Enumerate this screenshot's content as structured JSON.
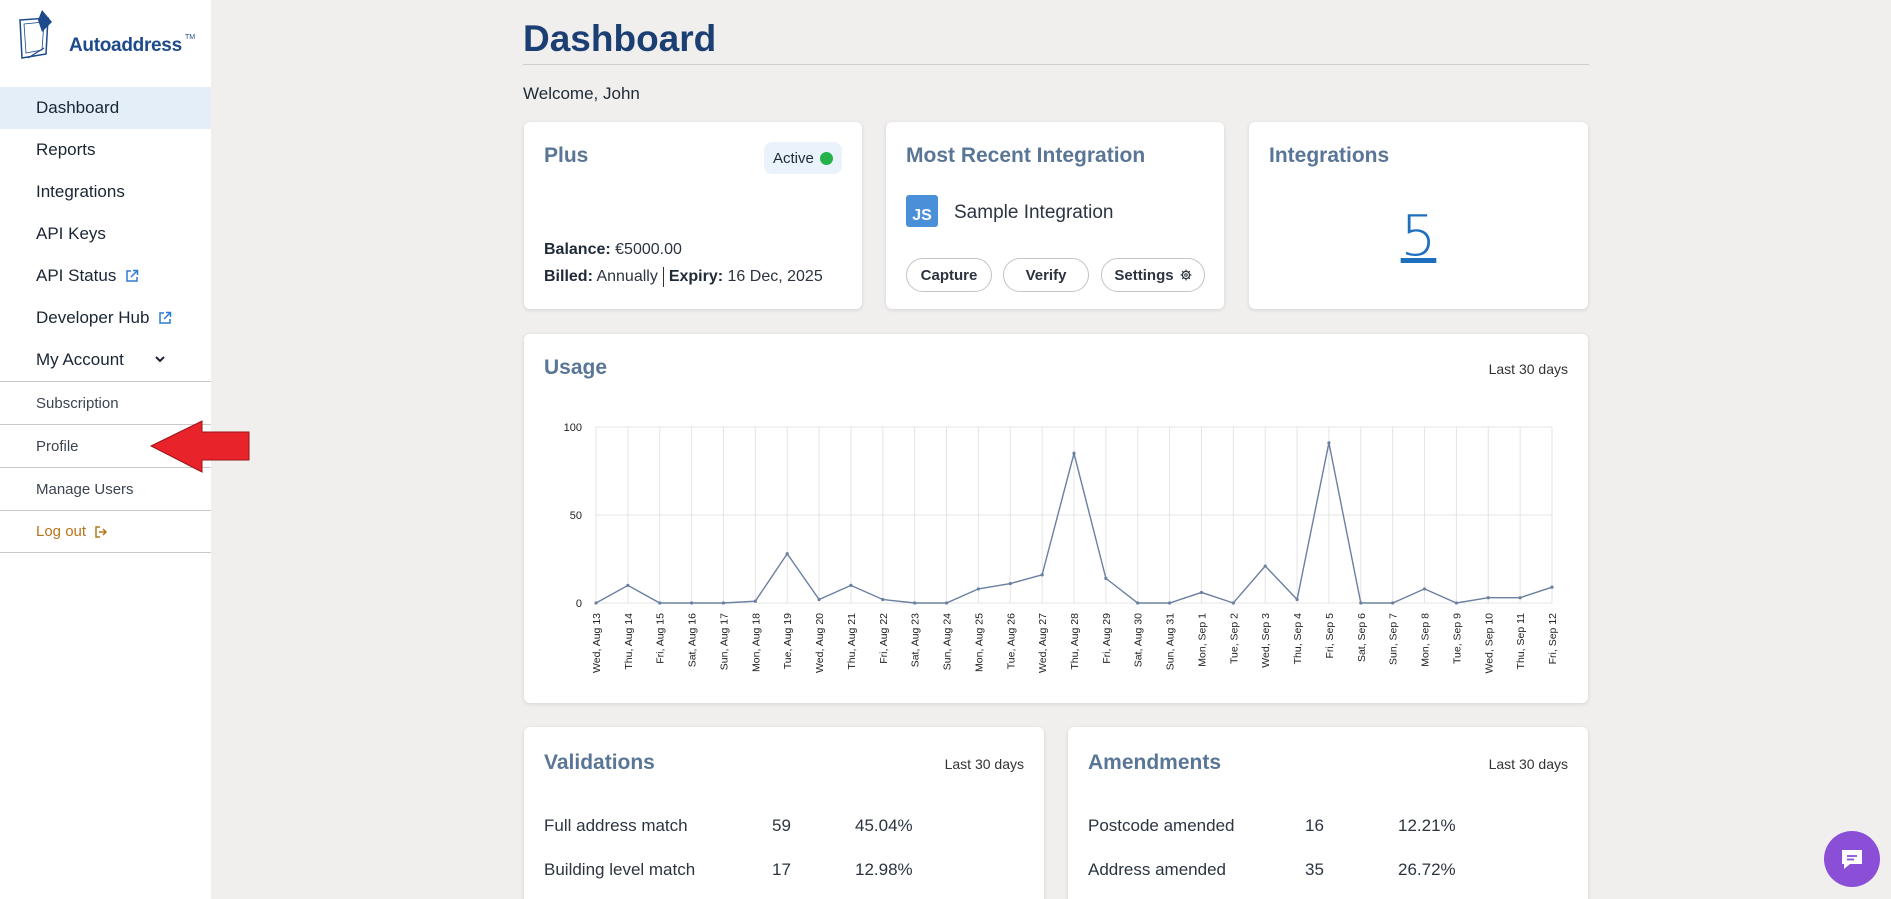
{
  "brand": {
    "name": "Autoaddress",
    "tm": "TM"
  },
  "nav": {
    "items": [
      {
        "label": "Dashboard",
        "active": true
      },
      {
        "label": "Reports"
      },
      {
        "label": "Integrations"
      },
      {
        "label": "API Keys"
      },
      {
        "label": "API Status",
        "external": true
      },
      {
        "label": "Developer Hub",
        "external": true
      },
      {
        "label": "My Account",
        "expanded": true
      }
    ],
    "sub_items": [
      {
        "label": "Subscription"
      },
      {
        "label": "Profile"
      },
      {
        "label": "Manage Users"
      }
    ],
    "logout": "Log out"
  },
  "page": {
    "title": "Dashboard",
    "welcome": "Welcome, John"
  },
  "plan_card": {
    "title": "Plus",
    "status": "Active",
    "status_color": "#24b24a",
    "balance_label": "Balance:",
    "balance_value": "€5000.00",
    "billed_label": "Billed:",
    "billed_value": "Annually",
    "expiry_label": "Expiry:",
    "expiry_value": "16 Dec, 2025"
  },
  "recent_integration": {
    "title": "Most Recent Integration",
    "icon_text": "JS",
    "name": "Sample Integration",
    "buttons": {
      "capture": "Capture",
      "verify": "Verify",
      "settings": "Settings"
    }
  },
  "integrations_card": {
    "title": "Integrations",
    "count": "5"
  },
  "usage_card": {
    "title": "Usage",
    "range": "Last 30 days"
  },
  "chart_data": {
    "type": "line",
    "title": "Usage",
    "xlabel": "",
    "ylabel": "",
    "ylim": [
      0,
      100
    ],
    "yticks": [
      0,
      50,
      100
    ],
    "grid": true,
    "categories": [
      "Wed, Aug 13",
      "Thu, Aug 14",
      "Fri, Aug 15",
      "Sat, Aug 16",
      "Sun, Aug 17",
      "Mon, Aug 18",
      "Tue, Aug 19",
      "Wed, Aug 20",
      "Thu, Aug 21",
      "Fri, Aug 22",
      "Sat, Aug 23",
      "Sun, Aug 24",
      "Mon, Aug 25",
      "Tue, Aug 26",
      "Wed, Aug 27",
      "Thu, Aug 28",
      "Fri, Aug 29",
      "Sat, Aug 30",
      "Sun, Aug 31",
      "Mon, Sep 1",
      "Tue, Sep 2",
      "Wed, Sep 3",
      "Thu, Sep 4",
      "Fri, Sep 5",
      "Sat, Sep 6",
      "Sun, Sep 7",
      "Mon, Sep 8",
      "Tue, Sep 9",
      "Wed, Sep 10",
      "Thu, Sep 11",
      "Fri, Sep 12"
    ],
    "values": [
      0,
      10,
      0,
      0,
      0,
      1,
      28,
      2,
      10,
      2,
      0,
      0,
      8,
      11,
      16,
      85,
      14,
      0,
      0,
      6,
      0,
      21,
      2,
      91,
      0,
      0,
      8,
      0,
      3,
      3,
      9
    ],
    "line_color": "#6a80a0"
  },
  "validations": {
    "title": "Validations",
    "range": "Last 30 days",
    "rows": [
      {
        "label": "Full address match",
        "count": "59",
        "pct": "45.04%"
      },
      {
        "label": "Building level match",
        "count": "17",
        "pct": "12.98%"
      }
    ]
  },
  "amendments": {
    "title": "Amendments",
    "range": "Last 30 days",
    "rows": [
      {
        "label": "Postcode amended",
        "count": "16",
        "pct": "12.21%"
      },
      {
        "label": "Address amended",
        "count": "35",
        "pct": "26.72%"
      }
    ]
  }
}
